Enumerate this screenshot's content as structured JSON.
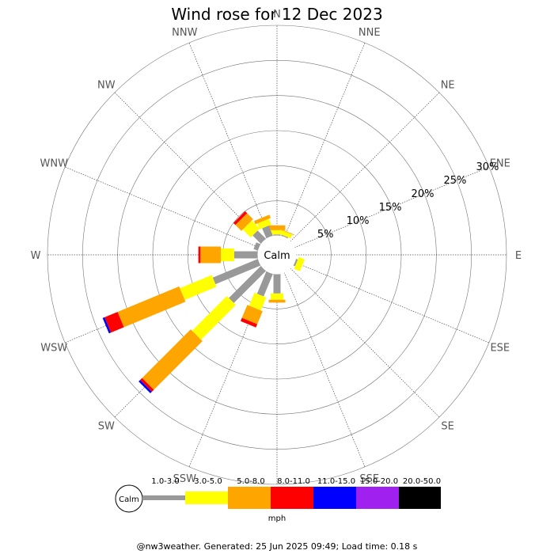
{
  "title": "Wind rose for 12 Dec 2023",
  "footer": "@nw3weather. Generated: 25 Jun 2025 09:49; Load time: 0.18 s",
  "calm_label": "Calm",
  "unit_label": "mph",
  "chart_data": {
    "type": "wind-rose",
    "title": "Wind rose for 12 Dec 2023",
    "directions": [
      "N",
      "NNE",
      "NE",
      "ENE",
      "E",
      "ESE",
      "SE",
      "SSE",
      "S",
      "SSW",
      "SW",
      "WSW",
      "W",
      "WNW",
      "NW",
      "NNW"
    ],
    "radial_ticks": [
      "5%",
      "10%",
      "15%",
      "20%",
      "25%",
      "30%"
    ],
    "radial_tick_values": [
      5,
      10,
      15,
      20,
      25,
      30
    ],
    "rmax": 30,
    "speed_bins": [
      {
        "label": "1.0-3.0",
        "color": "#999999"
      },
      {
        "label": "3.0-5.0",
        "color": "#ffff00"
      },
      {
        "label": "5.0-8.0",
        "color": "#ffa500"
      },
      {
        "label": "8.0-11.0",
        "color": "#ff0000"
      },
      {
        "label": "11.0-15.0",
        "color": "#0000ff"
      },
      {
        "label": "15.0-20.0",
        "color": "#a020f0"
      },
      {
        "label": "20.0-50.0",
        "color": "#000000"
      }
    ],
    "cumulative_percent": {
      "N": [
        0.2,
        0.8,
        1.5,
        1.5,
        1.5,
        1.5,
        1.5
      ],
      "NNE": [
        0.2,
        0.8,
        0.9,
        0.9,
        0.9,
        0.9,
        0.9
      ],
      "NE": [
        0,
        0,
        0,
        0,
        0,
        0,
        0
      ],
      "ENE": [
        0,
        0,
        0,
        0,
        0,
        0,
        0
      ],
      "E": [
        0,
        0,
        0,
        0,
        0,
        0,
        0
      ],
      "ESE": [
        0.3,
        1.2,
        1.2,
        1.2,
        1.2,
        1.2,
        1.2
      ],
      "SE": [
        0,
        0,
        0,
        0,
        0,
        0,
        0
      ],
      "SSE": [
        0,
        0,
        0,
        0,
        0,
        0,
        0
      ],
      "S": [
        2.8,
        3.7,
        4.1,
        4.1,
        4.1,
        4.1,
        4.1
      ],
      "SSW": [
        3.5,
        5.5,
        7.5,
        8.0,
        8.0,
        8.0,
        8.0
      ],
      "SW": [
        6.5,
        13.5,
        23.3,
        23.7,
        24.0,
        24.0,
        24.0
      ],
      "WSW": [
        7.0,
        11.9,
        21.4,
        23.4,
        23.7,
        23.7,
        23.7
      ],
      "W": [
        3.4,
        5.3,
        8.2,
        8.5,
        8.5,
        8.5,
        8.5
      ],
      "WNW": [
        0.7,
        0.7,
        0.7,
        0.7,
        0.7,
        0.7,
        0.7
      ],
      "NW": [
        1.7,
        3.3,
        4.5,
        4.9,
        4.9,
        4.9,
        4.9
      ],
      "NNW": [
        1.6,
        2.5,
        3.0,
        3.0,
        3.0,
        3.0,
        3.0
      ]
    }
  }
}
